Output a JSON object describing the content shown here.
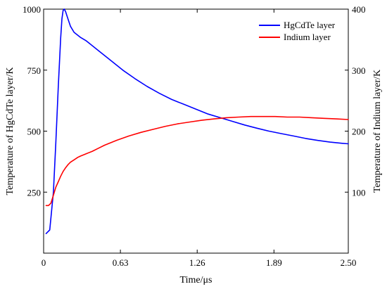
{
  "chart_data": {
    "type": "line",
    "xlabel": "Time/μs",
    "ylabel_left": "Temperature of HgCdTe layer/K",
    "ylabel_right": "Temperature of Indium layer/K",
    "xlim": [
      0,
      2.5
    ],
    "ylim_left": [
      0,
      1000
    ],
    "ylim_right": [
      0,
      400
    ],
    "x_ticks": [
      0,
      0.63,
      1.26,
      1.89,
      2.5
    ],
    "x_tick_labels": [
      "0",
      "0.63",
      "1.26",
      "1.89",
      "2.50"
    ],
    "y_left_ticks": [
      250,
      500,
      750,
      1000
    ],
    "y_left_tick_labels": [
      "250",
      "500",
      "750",
      "1000"
    ],
    "y_right_ticks": [
      100,
      200,
      300,
      400
    ],
    "y_right_tick_labels": [
      "100",
      "200",
      "300",
      "400"
    ],
    "grid": false,
    "legend_position": "top-right",
    "series": [
      {
        "name": "HgCdTe layer",
        "axis": "left",
        "color": "#0000ff",
        "x": [
          0.02,
          0.05,
          0.08,
          0.1,
          0.12,
          0.14,
          0.15,
          0.16,
          0.17,
          0.18,
          0.2,
          0.22,
          0.25,
          0.3,
          0.35,
          0.45,
          0.55,
          0.65,
          0.75,
          0.85,
          0.95,
          1.05,
          1.15,
          1.25,
          1.35,
          1.45,
          1.55,
          1.65,
          1.75,
          1.85,
          1.95,
          2.05,
          2.15,
          2.25,
          2.35,
          2.45,
          2.5
        ],
        "y": [
          80,
          95,
          250,
          450,
          680,
          880,
          960,
          995,
          1000,
          990,
          960,
          930,
          905,
          885,
          870,
          830,
          790,
          750,
          715,
          683,
          655,
          630,
          610,
          590,
          570,
          555,
          540,
          525,
          512,
          500,
          490,
          480,
          470,
          462,
          455,
          450,
          448
        ]
      },
      {
        "name": "Indium layer",
        "axis": "right",
        "color": "#ff0000",
        "x": [
          0.02,
          0.04,
          0.06,
          0.08,
          0.1,
          0.12,
          0.14,
          0.16,
          0.18,
          0.2,
          0.22,
          0.25,
          0.28,
          0.3,
          0.35,
          0.4,
          0.45,
          0.5,
          0.6,
          0.7,
          0.8,
          0.9,
          1.0,
          1.1,
          1.2,
          1.3,
          1.4,
          1.5,
          1.6,
          1.7,
          1.8,
          1.9,
          2.0,
          2.1,
          2.2,
          2.3,
          2.4,
          2.5
        ],
        "y": [
          78,
          78,
          82,
          95,
          108,
          117,
          126,
          134,
          140,
          145,
          149,
          153,
          157,
          159,
          163,
          167,
          172,
          177,
          185,
          192,
          198,
          203,
          208,
          212,
          215,
          218,
          220,
          222,
          223,
          224,
          224,
          224,
          223,
          223,
          222,
          221,
          220,
          219
        ]
      }
    ]
  }
}
